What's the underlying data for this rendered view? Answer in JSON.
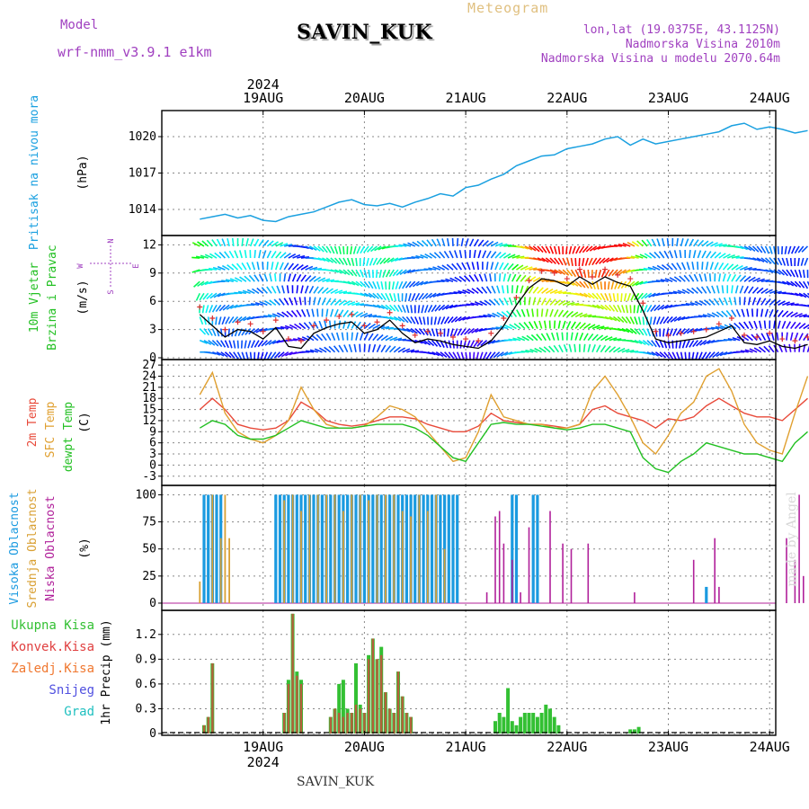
{
  "header": {
    "model_label": "Model",
    "model_name": "wrf-nmm_v3.9.1 e1km",
    "station": "SAVIN_KUK",
    "meteogram": "Meteogram",
    "lonlat": "lon,lat (19.0375E, 43.1125N)",
    "elevation": "Nadmorska Visina 2010m",
    "model_elevation": "Nadmorska Visina u modelu 2070.64m",
    "footer_station": "SAVIN_KUK",
    "watermark": "made by Angel"
  },
  "colors": {
    "pressure": "#1aa0e0",
    "t2m": "#e84a3a",
    "sfc": "#e0a030",
    "dewpt": "#22c022",
    "cloud_high": "#1a9ae0",
    "cloud_mid": "#d9a033",
    "cloud_low": "#b0209a",
    "precip_total": "#33c033",
    "precip_conv": "#e04040",
    "precip_frozen": "#f07830",
    "precip_snow": "#5050e0",
    "precip_grad": "#20c0c0",
    "wind_trace": "#000000",
    "gust_marks": "#e03030",
    "grid": "#888888",
    "title_purple": "#a040c0",
    "meteogram_color": "#e0c080"
  },
  "time_axis": {
    "year": "2024",
    "days": [
      "19AUG",
      "20AUG",
      "21AUG",
      "22AUG",
      "23AUG",
      "24AUG"
    ],
    "hours_start": 0,
    "hours_end": 144
  },
  "chart_data": [
    {
      "type": "line",
      "id": "pressure",
      "ylabel": "Pritisak na nivou mora",
      "unit": "(hPa)",
      "ylim": [
        1012,
        1022
      ],
      "yticks": [
        1014,
        1017,
        1020
      ],
      "series": [
        {
          "name": "Pritisak na nivou mora",
          "x": [
            0,
            3,
            6,
            9,
            12,
            15,
            18,
            21,
            24,
            27,
            30,
            33,
            36,
            39,
            42,
            45,
            48,
            51,
            54,
            57,
            60,
            63,
            66,
            69,
            72,
            75,
            78,
            81,
            84,
            87,
            90,
            93,
            96,
            99,
            102,
            105,
            108,
            111,
            114,
            117,
            120,
            123,
            126,
            129,
            132,
            135,
            138,
            141,
            144
          ],
          "values": [
            1013.2,
            1013.4,
            1013.6,
            1013.3,
            1013.5,
            1013.1,
            1013.0,
            1013.4,
            1013.6,
            1013.8,
            1014.2,
            1014.6,
            1014.8,
            1014.4,
            1014.3,
            1014.5,
            1014.2,
            1014.6,
            1014.9,
            1015.3,
            1015.1,
            1015.8,
            1016.0,
            1016.5,
            1016.9,
            1017.6,
            1018.0,
            1018.4,
            1018.5,
            1019.0,
            1019.2,
            1019.4,
            1019.8,
            1020.0,
            1019.3,
            1019.8,
            1019.4,
            1019.6,
            1019.8,
            1020.0,
            1020.2,
            1020.4,
            1020.9,
            1021.1,
            1020.6,
            1020.8,
            1020.6,
            1020.3,
            1020.5
          ]
        }
      ]
    },
    {
      "type": "line",
      "id": "wind",
      "ylabel": "10m Vjetar Brzina i Pravac",
      "unit": "(m/s)",
      "ylim": [
        0,
        12.8
      ],
      "yticks": [
        0,
        3,
        6,
        9,
        12
      ],
      "compass": [
        "N",
        "W",
        "E",
        "S"
      ],
      "series": [
        {
          "name": "10m Vjetar",
          "x": [
            0,
            3,
            6,
            9,
            12,
            15,
            18,
            21,
            24,
            27,
            30,
            33,
            36,
            39,
            42,
            45,
            48,
            51,
            54,
            57,
            60,
            63,
            66,
            69,
            72,
            75,
            78,
            81,
            84,
            87,
            90,
            93,
            96,
            99,
            102,
            105,
            108,
            111,
            114,
            117,
            120,
            123,
            126,
            129,
            132,
            135,
            138,
            141,
            144
          ],
          "values": [
            4.6,
            3.4,
            2.2,
            3.0,
            2.8,
            2.0,
            3.2,
            1.2,
            1.0,
            2.6,
            3.2,
            3.6,
            3.8,
            2.6,
            3.0,
            4.0,
            2.6,
            1.6,
            2.0,
            1.8,
            1.4,
            1.2,
            1.0,
            1.8,
            3.4,
            5.6,
            7.4,
            8.4,
            8.2,
            7.6,
            8.6,
            7.8,
            8.6,
            8.0,
            7.6,
            5.0,
            2.0,
            1.6,
            1.8,
            2.0,
            2.2,
            2.8,
            3.4,
            1.6,
            1.4,
            1.8,
            1.2,
            1.0,
            1.4
          ]
        }
      ]
    },
    {
      "type": "line",
      "id": "temp",
      "ylabel": "2m Temp / SFC Temp / dewpt Temp",
      "labels": [
        "2m Temp",
        "SFC Temp",
        "dewpt Temp"
      ],
      "unit": "(C)",
      "ylim": [
        -5,
        28
      ],
      "yticks": [
        -3,
        0,
        3,
        6,
        9,
        12,
        15,
        18,
        21,
        24,
        27
      ],
      "series": [
        {
          "name": "2m Temp",
          "x": [
            0,
            3,
            6,
            9,
            12,
            15,
            18,
            21,
            24,
            27,
            30,
            33,
            36,
            39,
            42,
            45,
            48,
            51,
            54,
            57,
            60,
            63,
            66,
            69,
            72,
            75,
            78,
            81,
            84,
            87,
            90,
            93,
            96,
            99,
            102,
            105,
            108,
            111,
            114,
            117,
            120,
            123,
            126,
            129,
            132,
            135,
            138,
            141,
            144
          ],
          "values": [
            15,
            18,
            15,
            11,
            10,
            9.5,
            10,
            12,
            17,
            15,
            12,
            11,
            10.5,
            11,
            12,
            13,
            13,
            12.5,
            11,
            10,
            9,
            9,
            10.5,
            14,
            12,
            11.5,
            11,
            11,
            10.5,
            10,
            11,
            15,
            16,
            14,
            13,
            12,
            10,
            12.5,
            12,
            13,
            16,
            18,
            16,
            14,
            13,
            13,
            12,
            15,
            18
          ]
        },
        {
          "name": "SFC Temp",
          "x": [
            0,
            3,
            6,
            9,
            12,
            15,
            18,
            21,
            24,
            27,
            30,
            33,
            36,
            39,
            42,
            45,
            48,
            51,
            54,
            57,
            60,
            63,
            66,
            69,
            72,
            75,
            78,
            81,
            84,
            87,
            90,
            93,
            96,
            99,
            102,
            105,
            108,
            111,
            114,
            117,
            120,
            123,
            126,
            129,
            132,
            135,
            138,
            141,
            144
          ],
          "values": [
            19,
            25,
            14,
            9,
            7,
            6,
            8,
            12,
            21,
            15,
            11,
            10,
            10,
            10.5,
            13,
            16,
            15,
            13,
            9,
            5,
            1,
            2,
            9,
            19,
            13,
            12,
            11,
            11,
            10,
            10,
            11,
            20,
            24,
            19,
            13,
            6,
            3,
            8,
            14,
            17,
            24,
            26,
            20,
            11,
            6,
            4,
            3,
            14,
            24
          ]
        },
        {
          "name": "dewpt Temp",
          "x": [
            0,
            3,
            6,
            9,
            12,
            15,
            18,
            21,
            24,
            27,
            30,
            33,
            36,
            39,
            42,
            45,
            48,
            51,
            54,
            57,
            60,
            63,
            66,
            69,
            72,
            75,
            78,
            81,
            84,
            87,
            90,
            93,
            96,
            99,
            102,
            105,
            108,
            111,
            114,
            117,
            120,
            123,
            126,
            129,
            132,
            135,
            138,
            141,
            144
          ],
          "values": [
            10,
            12,
            11,
            8,
            7,
            7,
            8,
            10,
            12,
            11,
            10,
            10,
            10,
            10.5,
            11,
            11,
            11,
            10,
            8,
            5,
            2,
            1,
            6,
            11,
            11.5,
            11,
            11,
            10.5,
            10,
            9.5,
            10,
            11,
            11,
            10,
            9,
            2,
            -1,
            -2,
            1,
            3,
            6,
            5,
            4,
            3,
            3,
            2,
            1,
            6,
            9
          ]
        }
      ]
    },
    {
      "type": "bar",
      "id": "clouds",
      "ylabel": "Visoka Oblacnost / Srednja Oblacnost / Niska Oblacnost",
      "labels": [
        "Visoka Oblacnost",
        "Srednja Oblacnost",
        "Niska Oblacnost"
      ],
      "unit": "(%)",
      "ylim": [
        -5,
        107
      ],
      "yticks": [
        0,
        25,
        50,
        75,
        100
      ],
      "series": [
        {
          "name": "Visoka Oblacnost",
          "x": [
            1,
            2,
            3,
            4,
            5,
            18,
            19,
            20,
            21,
            22,
            23,
            24,
            25,
            26,
            27,
            28,
            29,
            30,
            31,
            32,
            33,
            34,
            35,
            36,
            37,
            38,
            39,
            40,
            41,
            42,
            43,
            44,
            45,
            46,
            47,
            48,
            49,
            50,
            51,
            52,
            53,
            54,
            55,
            56,
            57,
            58,
            59,
            60,
            61,
            74,
            75,
            79,
            80,
            120
          ],
          "values": [
            100,
            100,
            100,
            100,
            100,
            100,
            100,
            100,
            100,
            100,
            100,
            100,
            100,
            100,
            100,
            100,
            100,
            100,
            100,
            100,
            100,
            100,
            100,
            100,
            100,
            100,
            100,
            100,
            100,
            100,
            100,
            100,
            100,
            100,
            100,
            100,
            100,
            100,
            100,
            100,
            100,
            100,
            100,
            100,
            100,
            100,
            100,
            100,
            100,
            100,
            100,
            100,
            100,
            15
          ]
        },
        {
          "name": "Srednja Oblacnost",
          "x": [
            0,
            3,
            5,
            6,
            7,
            20,
            22,
            24,
            26,
            28,
            30,
            32,
            34,
            36,
            38,
            40,
            42,
            44,
            46,
            48,
            50,
            52,
            54,
            56,
            58
          ],
          "values": [
            20,
            100,
            60,
            100,
            60,
            95,
            100,
            85,
            100,
            100,
            100,
            100,
            85,
            100,
            100,
            95,
            100,
            100,
            100,
            85,
            80,
            100,
            85,
            100,
            50
          ]
        },
        {
          "name": "Niska Oblacnost",
          "x": [
            68,
            70,
            71,
            72,
            74,
            76,
            78,
            83,
            86,
            88,
            92,
            103,
            117,
            122,
            123,
            139,
            141,
            142,
            143
          ],
          "values": [
            10,
            80,
            85,
            55,
            40,
            10,
            70,
            85,
            55,
            50,
            55,
            10,
            40,
            60,
            15,
            60,
            40,
            100,
            25
          ]
        }
      ]
    },
    {
      "type": "bar",
      "id": "precip",
      "ylabel": "1hr Precip (mm)",
      "labels": [
        "Ukupna Kisa",
        "Konvek.Kisa",
        "Zaledj.Kisa",
        "Snijeg",
        "Grad"
      ],
      "ylim": [
        0,
        1.47
      ],
      "yticks": [
        0,
        0.3,
        0.6,
        0.9,
        1.2
      ],
      "series": [
        {
          "name": "Ukupna Kisa",
          "x": [
            1,
            2,
            3,
            20,
            21,
            22,
            23,
            24,
            31,
            32,
            33,
            34,
            35,
            36,
            37,
            38,
            39,
            40,
            41,
            42,
            43,
            44,
            45,
            46,
            47,
            48,
            49,
            50,
            70,
            71,
            72,
            73,
            74,
            75,
            76,
            77,
            78,
            79,
            80,
            81,
            82,
            83,
            84,
            85,
            102,
            103,
            104
          ],
          "values": [
            0.1,
            0.2,
            0.85,
            0.25,
            0.65,
            1.45,
            0.75,
            0.65,
            0.2,
            0.3,
            0.6,
            0.65,
            0.3,
            0.25,
            0.85,
            0.35,
            0.25,
            0.95,
            1.15,
            0.9,
            1.05,
            0.5,
            0.3,
            0.25,
            0.75,
            0.45,
            0.25,
            0.2,
            0.15,
            0.25,
            0.2,
            0.55,
            0.15,
            0.1,
            0.2,
            0.25,
            0.25,
            0.25,
            0.2,
            0.25,
            0.35,
            0.3,
            0.2,
            0.1,
            0.05,
            0.05,
            0.08
          ]
        },
        {
          "name": "Konvek.Kisa",
          "x": [
            1,
            2,
            3,
            20,
            21,
            22,
            23,
            24,
            31,
            32,
            33,
            34,
            35,
            36,
            37,
            38,
            39,
            40,
            41,
            42,
            43,
            44,
            45,
            46,
            47,
            48,
            49,
            50
          ],
          "values": [
            0.1,
            0.2,
            0.85,
            0.25,
            0.6,
            1.45,
            0.7,
            0.6,
            0.2,
            0.3,
            0.25,
            0.2,
            0.25,
            0.25,
            0.35,
            0.3,
            0.25,
            0.9,
            1.15,
            0.9,
            0.95,
            0.5,
            0.3,
            0.25,
            0.75,
            0.45,
            0.25,
            0.2
          ]
        }
      ]
    }
  ]
}
